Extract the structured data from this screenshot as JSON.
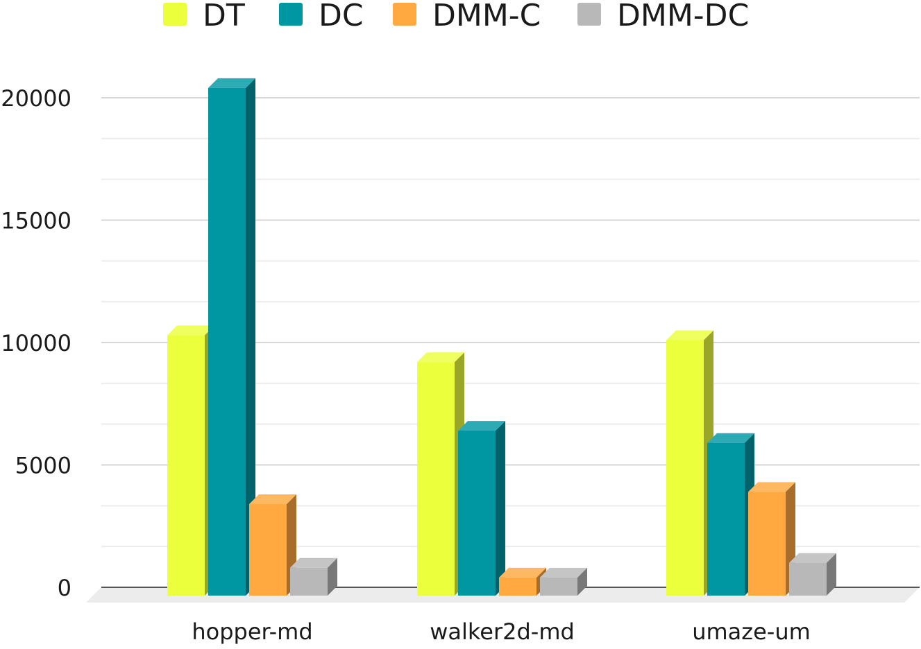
{
  "chart_data": {
    "type": "bar",
    "style": "3d",
    "title": "",
    "xlabel": "",
    "ylabel": "",
    "categories": [
      "hopper-md",
      "walker2d-md",
      "umaze-um"
    ],
    "series": [
      {
        "name": "DT",
        "color": "#ebff3c",
        "values": [
          10300,
          9200,
          10100
        ]
      },
      {
        "name": "DC",
        "color": "#0097a3",
        "values": [
          20400,
          6400,
          5900
        ]
      },
      {
        "name": "DMM-C",
        "color": "#ffa940",
        "values": [
          3400,
          400,
          3900
        ]
      },
      {
        "name": "DMM-DC",
        "color": "#b8b8b8",
        "values": [
          800,
          400,
          1000
        ]
      }
    ],
    "ylim": [
      0,
      20000
    ],
    "yticks": [
      0,
      5000,
      10000,
      15000,
      20000
    ],
    "ytick_labels": [
      "0",
      "5000",
      "10000",
      "15000",
      "20000"
    ],
    "minor_grid_step": 1666.67,
    "grid": true,
    "legend_position": "top-center"
  }
}
